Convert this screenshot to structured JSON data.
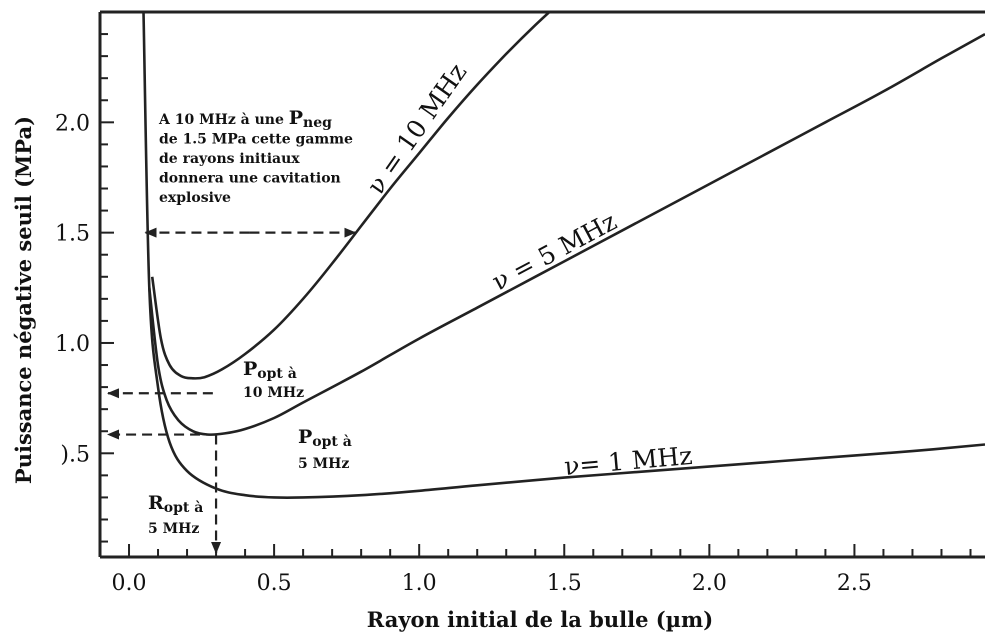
{
  "chart_data": {
    "type": "line",
    "xlabel": "Rayon initial de la bulle (µm)",
    "ylabel": "Puissance négative seuil (MPa)",
    "xlim": [
      -0.1,
      2.95
    ],
    "ylim": [
      0.03,
      2.5
    ],
    "x_ticks": [
      0.0,
      0.5,
      1.0,
      1.5,
      2.0,
      2.5
    ],
    "x_tick_labels": [
      "0.0",
      "0.5",
      "1.0",
      "1.5",
      "2.0",
      "2.5"
    ],
    "y_ticks": [
      0.5,
      1.0,
      1.5,
      2.0
    ],
    "y_tick_labels": [
      ").5",
      "1.0",
      "1.5",
      "2.0"
    ],
    "grid": false,
    "series": [
      {
        "name": "ν = 10 MHz",
        "x": [
          0.08,
          0.11,
          0.14,
          0.18,
          0.22,
          0.26,
          0.32,
          0.4,
          0.5,
          0.6,
          0.7,
          0.8,
          0.9,
          1.0,
          1.1,
          1.2,
          1.3,
          1.4,
          1.5,
          1.54
        ],
        "y": [
          1.3,
          1.02,
          0.9,
          0.85,
          0.84,
          0.845,
          0.88,
          0.95,
          1.06,
          1.2,
          1.36,
          1.53,
          1.7,
          1.86,
          2.02,
          2.17,
          2.31,
          2.44,
          2.56,
          2.6
        ]
      },
      {
        "name": "ν = 5 MHz",
        "x": [
          0.07,
          0.1,
          0.13,
          0.17,
          0.22,
          0.27,
          0.33,
          0.4,
          0.5,
          0.6,
          0.8,
          1.0,
          1.2,
          1.4,
          1.6,
          1.8,
          2.0,
          2.2,
          2.4,
          2.6,
          2.8,
          2.95
        ],
        "y": [
          1.25,
          0.9,
          0.74,
          0.65,
          0.6,
          0.585,
          0.59,
          0.61,
          0.66,
          0.73,
          0.87,
          1.02,
          1.16,
          1.3,
          1.44,
          1.58,
          1.72,
          1.86,
          2.0,
          2.14,
          2.29,
          2.4
        ]
      },
      {
        "name": "ν= 1 MHz",
        "x": [
          0.05,
          0.07,
          0.1,
          0.14,
          0.2,
          0.3,
          0.4,
          0.5,
          0.6,
          0.8,
          1.0,
          1.2,
          1.5,
          1.8,
          2.1,
          2.4,
          2.7,
          2.95
        ],
        "y": [
          2.5,
          1.25,
          0.8,
          0.55,
          0.42,
          0.34,
          0.31,
          0.3,
          0.3,
          0.31,
          0.33,
          0.355,
          0.39,
          0.42,
          0.45,
          0.48,
          0.51,
          0.54
        ]
      }
    ],
    "series_labels": {
      "v10": "ν = 10 MHz",
      "v5": "ν = 5 MHz",
      "v1": "ν= 1 MHz"
    },
    "annotations": {
      "explosive": {
        "lines": [
          [
            "A 10 MHz à une ",
            "P",
            "neg"
          ],
          [
            "de 1.5 MPa cette gamme"
          ],
          [
            "de rayons initiaux"
          ],
          [
            "donnera une cavitation"
          ],
          [
            "explosive"
          ]
        ],
        "arrow": {
          "y": 1.5,
          "x_from": 0.05,
          "x_to": 0.78
        }
      },
      "popt10": {
        "lines": [
          [
            "P",
            "opt à"
          ],
          [
            "10 MHz"
          ]
        ],
        "arrow": {
          "y": 0.84,
          "x_from": 0.22,
          "x_to": -0.1
        }
      },
      "popt5": {
        "lines": [
          [
            "P",
            "opt à"
          ],
          [
            "5 MHz"
          ]
        ],
        "arrow": {
          "y": 0.585,
          "x_from": 0.3,
          "x_to": -0.1
        }
      },
      "ropt5": {
        "lines": [
          [
            "R",
            "opt à"
          ],
          [
            "5 MHz"
          ]
        ],
        "arrow": {
          "x": 0.3,
          "y_from": 0.585,
          "y_to": 0.03
        }
      }
    }
  }
}
